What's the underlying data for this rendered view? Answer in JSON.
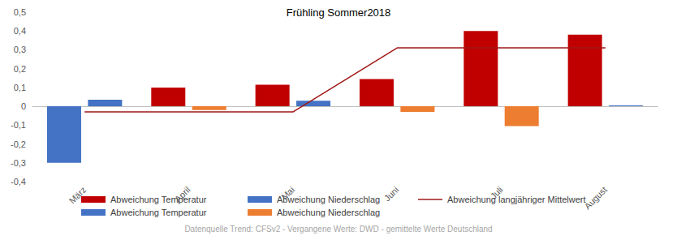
{
  "chart_data": {
    "type": "bar",
    "title": "Frühling Sommer2018",
    "caption": "Datenquelle Trend: CFSv2 - Vergangene Werte: DWD - gemittelte Werte Deutschland",
    "categories": [
      "März",
      "April",
      "Mai",
      "Juni",
      "Juli",
      "August"
    ],
    "series": [
      {
        "name": "Abweichung Temperatur",
        "type": "bar",
        "color": "#c00000",
        "values": [
          null,
          0.1,
          0.115,
          0.145,
          0.4,
          0.38
        ]
      },
      {
        "name": "Abweichung Niederschlag",
        "type": "bar",
        "color": "#4472c4",
        "values": [
          0.035,
          null,
          0.03,
          null,
          null,
          0.005
        ]
      },
      {
        "name": "Abweichung langjähriger Mittelwert",
        "type": "line",
        "color": "#a01818",
        "values": [
          -0.03,
          -0.03,
          -0.03,
          0.31,
          0.31,
          0.31
        ]
      },
      {
        "name": "Abweichung Temperatur",
        "type": "bar",
        "color": "#4472c4",
        "values": [
          -0.3,
          null,
          null,
          null,
          null,
          null
        ]
      },
      {
        "name": "Abweichung Niederschlag",
        "type": "bar",
        "color": "#ed7d31",
        "values": [
          null,
          -0.02,
          null,
          -0.03,
          -0.105,
          null
        ]
      }
    ],
    "ylim": [
      -0.4,
      0.5
    ],
    "yticks": [
      {
        "value": -0.4,
        "label": "-0,4"
      },
      {
        "value": -0.3,
        "label": "-0,3"
      },
      {
        "value": -0.2,
        "label": "-0,2"
      },
      {
        "value": -0.1,
        "label": "-0,1"
      },
      0,
      {
        "value": 0.1,
        "label": "0,1"
      },
      {
        "value": 0.2,
        "label": "0,2"
      },
      {
        "value": 0.3,
        "label": "0,3"
      },
      {
        "value": 0.4,
        "label": "0,4"
      },
      {
        "value": 0.5,
        "label": "0,5"
      }
    ],
    "stacked": true,
    "grid": false,
    "legend": "bottom"
  }
}
